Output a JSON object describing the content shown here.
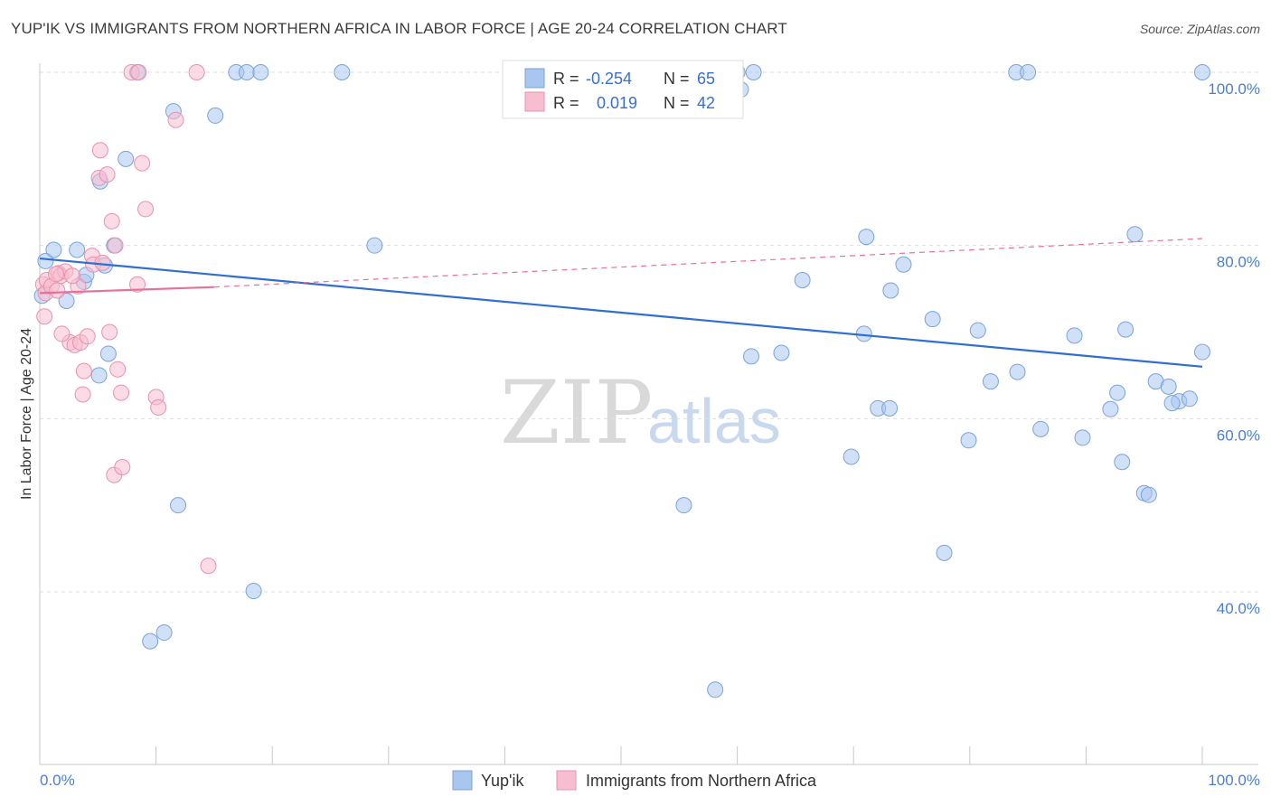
{
  "title": "YUP'IK VS IMMIGRANTS FROM NORTHERN AFRICA IN LABOR FORCE | AGE 20-24 CORRELATION CHART",
  "source": "Source: ZipAtlas.com",
  "watermark": {
    "zip": "ZIP",
    "atlas": "atlas"
  },
  "chart_data": {
    "type": "scatter",
    "title": "YUP'IK VS IMMIGRANTS FROM NORTHERN AFRICA IN LABOR FORCE | AGE 20-24 CORRELATION CHART",
    "xlabel": "",
    "ylabel": "In Labor Force | Age 20-24",
    "xlim": [
      0,
      100
    ],
    "ylim": [
      20,
      103
    ],
    "x_tick_labels": {
      "left": "0.0%",
      "right": "100.0%"
    },
    "y_ticks": [
      {
        "value": 100,
        "label": "100.0%"
      },
      {
        "value": 80,
        "label": "80.0%"
      },
      {
        "value": 60,
        "label": "60.0%"
      },
      {
        "value": 40,
        "label": "40.0%"
      }
    ],
    "legend": {
      "rows": [
        {
          "r_label": "R =",
          "r_value": "-0.254",
          "n_label": "N =",
          "n_value": "65"
        },
        {
          "r_label": "R =",
          "r_value": "0.019",
          "n_label": "N =",
          "n_value": "42"
        }
      ]
    },
    "series": [
      {
        "name": "Yup'ik",
        "color": "#a9c6ee",
        "edge": "#7aa3dc",
        "line_color": "#2f6fd0",
        "trend": {
          "x0": 0,
          "y0": 78.5,
          "x1": 100,
          "y1": 66
        },
        "points": [
          [
            0.2,
            74.2
          ],
          [
            0.5,
            78.2
          ],
          [
            1.2,
            79.5
          ],
          [
            2.3,
            73.6
          ],
          [
            3.2,
            79.5
          ],
          [
            3.8,
            75.8
          ],
          [
            4.0,
            76.6
          ],
          [
            5.2,
            87.4
          ],
          [
            5.1,
            65.0
          ],
          [
            5.6,
            77.7
          ],
          [
            5.9,
            67.5
          ],
          [
            6.4,
            80.0
          ],
          [
            7.4,
            90.0
          ],
          [
            8.4,
            100
          ],
          [
            9.5,
            34.3
          ],
          [
            10.7,
            35.3
          ],
          [
            11.5,
            95.5
          ],
          [
            11.9,
            50.0
          ],
          [
            15.1,
            95.0
          ],
          [
            16.9,
            100
          ],
          [
            17.8,
            100
          ],
          [
            18.4,
            40.1
          ],
          [
            19.0,
            100
          ],
          [
            26.0,
            100
          ],
          [
            28.8,
            80.0
          ],
          [
            55.4,
            50.0
          ],
          [
            58.1,
            28.7
          ],
          [
            60.0,
            100
          ],
          [
            60.3,
            98.0
          ],
          [
            61.2,
            67.2
          ],
          [
            61.4,
            100
          ],
          [
            63.8,
            67.6
          ],
          [
            65.6,
            76.0
          ],
          [
            69.8,
            55.6
          ],
          [
            71.1,
            81.0
          ],
          [
            70.9,
            69.8
          ],
          [
            72.1,
            61.2
          ],
          [
            73.1,
            61.2
          ],
          [
            73.2,
            74.8
          ],
          [
            74.3,
            77.8
          ],
          [
            76.8,
            71.5
          ],
          [
            77.8,
            44.5
          ],
          [
            79.9,
            57.5
          ],
          [
            80.7,
            70.2
          ],
          [
            81.8,
            64.3
          ],
          [
            84.1,
            65.4
          ],
          [
            84.0,
            100
          ],
          [
            85.0,
            100
          ],
          [
            86.1,
            58.8
          ],
          [
            89.0,
            69.6
          ],
          [
            89.7,
            57.8
          ],
          [
            92.1,
            61.1
          ],
          [
            92.7,
            63.0
          ],
          [
            93.1,
            55.0
          ],
          [
            93.4,
            70.3
          ],
          [
            94.2,
            81.3
          ],
          [
            95.0,
            51.4
          ],
          [
            95.4,
            51.2
          ],
          [
            96.0,
            64.3
          ],
          [
            97.1,
            63.7
          ],
          [
            98.0,
            62.0
          ],
          [
            98.9,
            62.3
          ],
          [
            97.4,
            61.8
          ],
          [
            100.0,
            100
          ],
          [
            100.0,
            67.7
          ]
        ]
      },
      {
        "name": "Immigrants from Northern Africa",
        "color": "#f7bdd0",
        "edge": "#e892ad",
        "line_color": "#e8719a",
        "trend": {
          "x0": 0,
          "y0": 74.5,
          "x1": 15,
          "y1": 75.2
        },
        "trend_dashed": {
          "x0": 15,
          "y0": 75.2,
          "x1": 100,
          "y1": 80.8
        },
        "points": [
          [
            0.3,
            75.5
          ],
          [
            0.4,
            71.8
          ],
          [
            0.5,
            74.5
          ],
          [
            0.6,
            76.0
          ],
          [
            1.0,
            75.3
          ],
          [
            1.5,
            74.8
          ],
          [
            1.6,
            76.8
          ],
          [
            1.8,
            76.5
          ],
          [
            2.2,
            77.0
          ],
          [
            2.6,
            68.8
          ],
          [
            3.0,
            68.5
          ],
          [
            3.3,
            75.3
          ],
          [
            3.5,
            68.8
          ],
          [
            3.7,
            62.8
          ],
          [
            3.8,
            65.5
          ],
          [
            4.1,
            69.5
          ],
          [
            4.5,
            78.8
          ],
          [
            4.6,
            77.8
          ],
          [
            5.1,
            87.8
          ],
          [
            5.2,
            91.0
          ],
          [
            5.8,
            88.2
          ],
          [
            6.0,
            70.0
          ],
          [
            6.2,
            82.8
          ],
          [
            6.4,
            53.5
          ],
          [
            6.5,
            80.0
          ],
          [
            6.7,
            65.7
          ],
          [
            7.0,
            63.0
          ],
          [
            7.1,
            54.4
          ],
          [
            7.9,
            100
          ],
          [
            8.4,
            75.5
          ],
          [
            8.5,
            100
          ],
          [
            8.8,
            89.5
          ],
          [
            9.1,
            84.2
          ],
          [
            10.0,
            62.5
          ],
          [
            10.2,
            61.3
          ],
          [
            11.7,
            94.5
          ],
          [
            13.5,
            100
          ],
          [
            14.5,
            43.0
          ],
          [
            1.4,
            76.7
          ],
          [
            2.8,
            76.5
          ],
          [
            1.9,
            69.8
          ],
          [
            5.4,
            78.0
          ]
        ]
      }
    ]
  }
}
